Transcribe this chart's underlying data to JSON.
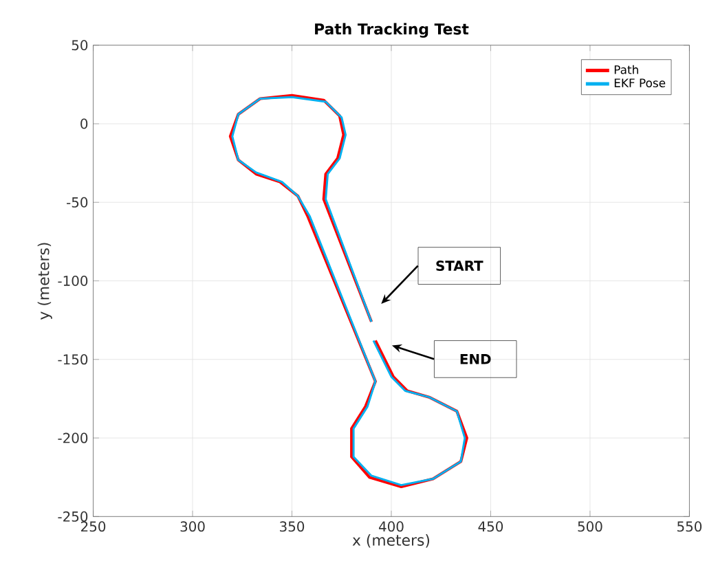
{
  "chart_data": {
    "type": "line",
    "title": "Path Tracking Test",
    "xlabel": "x (meters)",
    "ylabel": "y (meters)",
    "xlim": [
      250,
      550
    ],
    "ylim": [
      -250,
      50
    ],
    "xticks": [
      250,
      300,
      350,
      400,
      450,
      500,
      550
    ],
    "yticks": [
      -250,
      -200,
      -150,
      -100,
      -50,
      0,
      50
    ],
    "grid": true,
    "legend": "top right",
    "series": [
      {
        "name": "Path",
        "color": "#ff0000",
        "x": [
          390,
          366,
          367,
          373,
          376,
          374,
          366,
          350,
          334,
          323,
          319,
          323,
          332,
          344,
          353,
          358,
          392,
          387,
          380,
          380,
          389,
          405,
          421,
          435,
          438,
          433,
          419,
          408,
          401,
          392
        ],
        "values": [
          -126,
          -48,
          -32,
          -22,
          -7,
          5,
          15,
          18,
          16,
          6,
          -8,
          -23,
          -32,
          -37,
          -46,
          -59,
          -164,
          -180,
          -194,
          -212,
          -225,
          -231,
          -226,
          -215,
          -200,
          -183,
          -174,
          -170,
          -161,
          -138
        ]
      },
      {
        "name": "EKF Pose",
        "color": "#00b0f0",
        "x": [
          390,
          367,
          368,
          374,
          377,
          375,
          367,
          350,
          334,
          323,
          320,
          323,
          332,
          345,
          353,
          359,
          392,
          388,
          381,
          381,
          390,
          405,
          421,
          435,
          437,
          433,
          419,
          407,
          400,
          391
        ],
        "values": [
          -126,
          -48,
          -32,
          -22,
          -7,
          4,
          14,
          17,
          16,
          6,
          -8,
          -23,
          -31,
          -37,
          -46,
          -59,
          -164,
          -180,
          -194,
          -212,
          -224,
          -230,
          -226,
          -215,
          -200,
          -183,
          -174,
          -170,
          -161,
          -138
        ]
      }
    ],
    "annotations": [
      "START",
      "END"
    ]
  }
}
